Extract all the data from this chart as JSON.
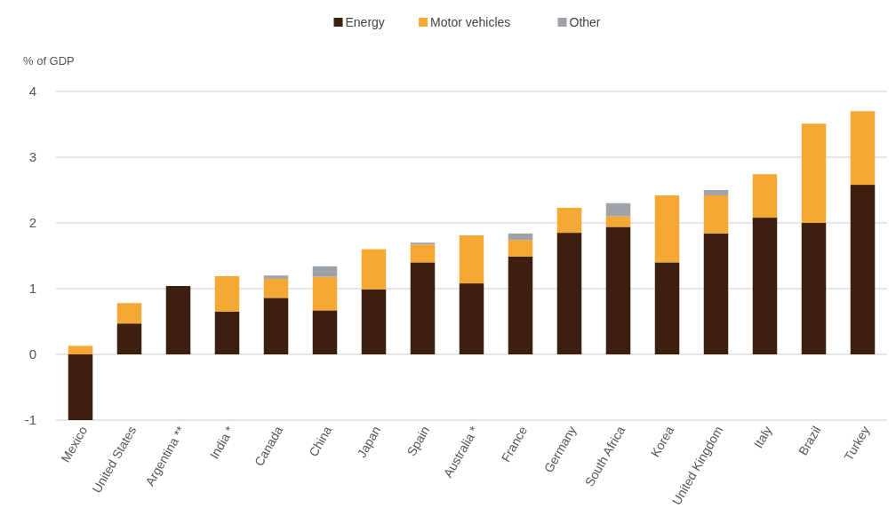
{
  "chart_data": {
    "type": "bar",
    "stacked": true,
    "ylabel": "% of GDP",
    "categories": [
      "Mexico",
      "United States",
      "Argentina **",
      "India *",
      "Canada",
      "China",
      "Japan",
      "Spain",
      "Australia *",
      "France",
      "Germany",
      "South Africa",
      "Korea",
      "United Kingdom",
      "Italy",
      "Brazil",
      "Turkey"
    ],
    "series": [
      {
        "name": "Energy",
        "color": "#3d1f0f",
        "values": [
          -1,
          0.47,
          1.04,
          0.65,
          0.86,
          0.67,
          0.99,
          1.4,
          1.08,
          1.49,
          1.85,
          1.94,
          1.4,
          1.84,
          2.08,
          2.0,
          2.58
        ]
      },
      {
        "name": "Motor vehicles",
        "color": "#f5a833",
        "values": [
          0.13,
          0.31,
          0,
          0.54,
          0.29,
          0.51,
          0.61,
          0.27,
          0.73,
          0.25,
          0.38,
          0.16,
          1.02,
          0.58,
          0.66,
          1.51,
          1.12
        ]
      },
      {
        "name": "Other",
        "color": "#9ea3aa",
        "values": [
          0,
          0,
          0,
          0,
          0.05,
          0.16,
          0,
          0.03,
          0,
          0.1,
          0,
          0.2,
          0,
          0.08,
          0,
          0,
          0
        ]
      }
    ],
    "ylim": [
      -1,
      4
    ],
    "yticks": [
      -1,
      0,
      1,
      2,
      3,
      4
    ],
    "grid": "y",
    "legend": "top"
  }
}
